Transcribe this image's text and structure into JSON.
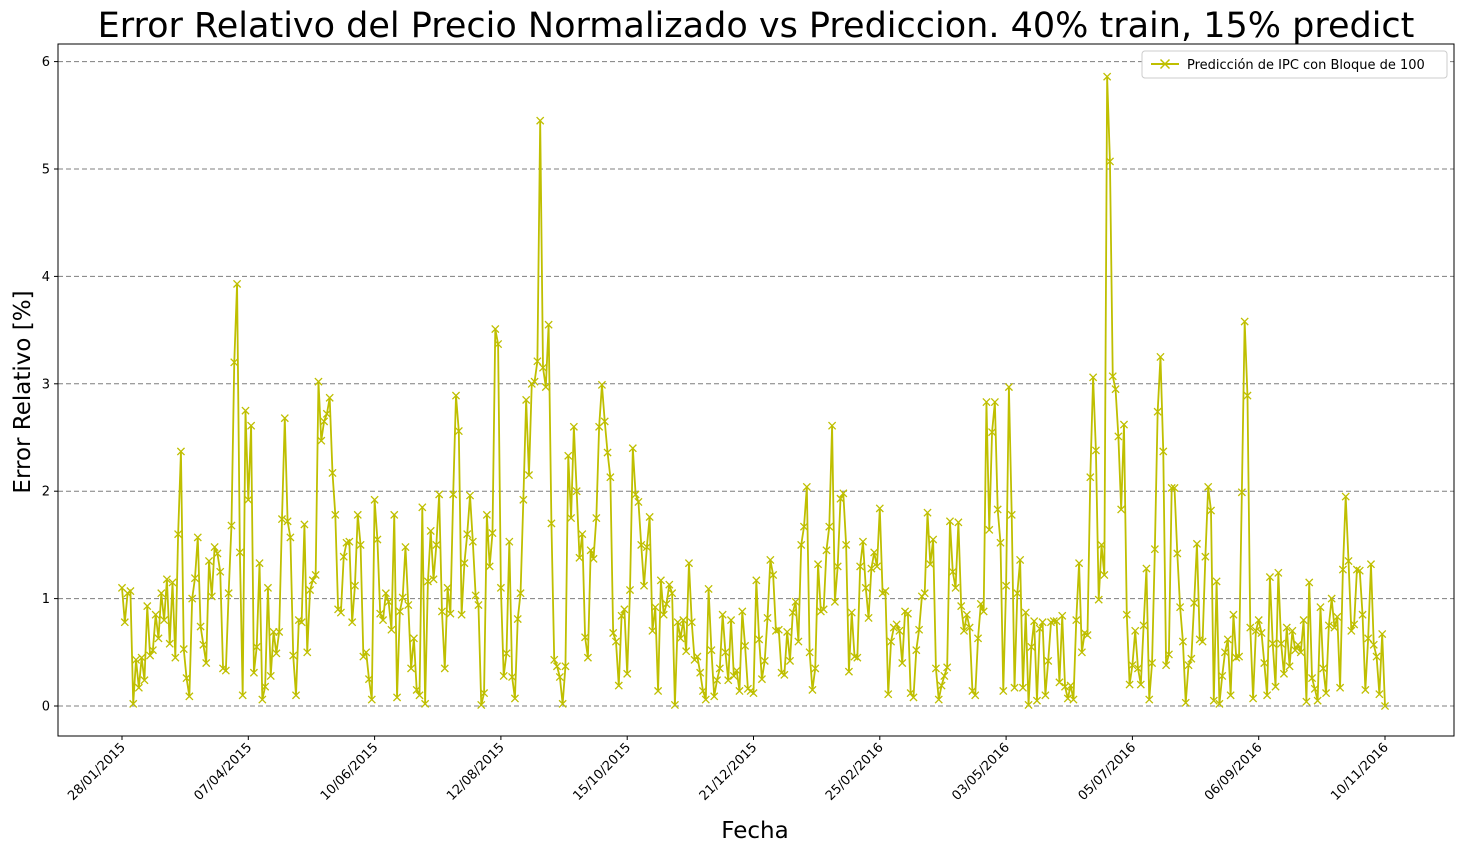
{
  "chart_data": {
    "type": "line",
    "title": "Error Relativo del Precio Normalizado vs Prediccion. 40% train, 15% predict",
    "xlabel": "Fecha",
    "ylabel": "Error Relativo [%]",
    "x_ticks": [
      "28/01/2015",
      "07/04/2015",
      "10/06/2015",
      "12/08/2015",
      "15/10/2015",
      "21/12/2015",
      "25/02/2016",
      "03/05/2016",
      "05/07/2016",
      "06/09/2016",
      "10/11/2016"
    ],
    "y_ticks": [
      "0",
      "1",
      "2",
      "3",
      "4",
      "5",
      "6"
    ],
    "ylim": [
      -0.3,
      6.17
    ],
    "grid": "horizontal dashed",
    "legend_position": "top-right",
    "color": "#bfbf00",
    "marker": "x",
    "series": [
      {
        "name": "Predicción de IPC con Bloque de 100",
        "values": [
          1.1,
          0.78,
          1.05,
          1.07,
          0.02,
          0.43,
          0.17,
          0.45,
          0.24,
          0.93,
          0.47,
          0.52,
          0.85,
          0.63,
          1.05,
          0.8,
          1.18,
          0.58,
          1.15,
          0.45,
          1.6,
          2.37,
          0.53,
          0.26,
          0.09,
          1.0,
          1.19,
          1.57,
          0.74,
          0.57,
          0.4,
          1.35,
          1.02,
          1.48,
          1.42,
          1.25,
          0.35,
          0.33,
          1.05,
          1.68,
          3.2,
          3.93,
          1.43,
          0.1,
          2.75,
          1.92,
          2.61,
          0.31,
          0.55,
          1.33,
          0.06,
          0.18,
          1.1,
          0.28,
          0.69,
          0.49,
          0.69,
          1.74,
          2.68,
          1.72,
          1.57,
          0.47,
          0.1,
          0.8,
          0.78,
          1.69,
          0.5,
          1.08,
          1.17,
          1.22,
          3.02,
          2.47,
          2.65,
          2.72,
          2.87,
          2.17,
          1.78,
          0.9,
          0.87,
          1.39,
          1.52,
          1.53,
          0.78,
          1.12,
          1.78,
          1.5,
          0.46,
          0.5,
          0.25,
          0.06,
          1.92,
          1.55,
          0.86,
          0.8,
          1.05,
          0.97,
          0.71,
          1.78,
          0.08,
          0.88,
          1.01,
          1.48,
          0.94,
          0.35,
          0.63,
          0.15,
          0.1,
          1.85,
          0.02,
          1.16,
          1.63,
          1.18,
          1.5,
          1.97,
          0.88,
          0.35,
          1.1,
          0.86,
          1.97,
          2.89,
          2.56,
          0.85,
          1.33,
          1.6,
          1.96,
          1.53,
          1.03,
          0.94,
          0.01,
          0.12,
          1.78,
          1.3,
          1.61,
          3.51,
          3.37,
          1.1,
          0.28,
          0.49,
          1.53,
          0.27,
          0.07,
          0.81,
          1.05,
          1.92,
          2.85,
          2.15,
          3.0,
          3.02,
          3.21,
          5.45,
          3.15,
          2.97,
          3.55,
          1.7,
          0.43,
          0.37,
          0.27,
          0.02,
          0.37,
          2.33,
          1.75,
          2.6,
          2.0,
          1.38,
          1.6,
          0.64,
          0.45,
          1.45,
          1.37,
          1.75,
          2.6,
          2.99,
          2.65,
          2.36,
          2.13,
          0.68,
          0.6,
          0.19,
          0.84,
          0.9,
          0.3,
          1.08,
          2.4,
          1.97,
          1.9,
          1.5,
          1.12,
          1.48,
          1.76,
          0.7,
          0.92,
          0.14,
          1.17,
          0.85,
          0.95,
          1.13,
          1.05,
          0.01,
          0.78,
          0.63,
          0.8,
          0.51,
          1.33,
          0.78,
          0.43,
          0.46,
          0.31,
          0.14,
          0.06,
          1.09,
          0.52,
          0.09,
          0.24,
          0.35,
          0.85,
          0.5,
          0.24,
          0.8,
          0.28,
          0.33,
          0.14,
          0.88,
          0.56,
          0.16,
          0.14,
          0.12,
          1.17,
          0.62,
          0.25,
          0.42,
          0.82,
          1.36,
          1.22,
          0.7,
          0.71,
          0.31,
          0.29,
          0.69,
          0.42,
          0.87,
          0.97,
          0.6,
          1.5,
          1.67,
          2.04,
          0.5,
          0.15,
          0.35,
          1.32,
          0.88,
          0.9,
          1.45,
          1.67,
          2.61,
          0.97,
          1.3,
          1.93,
          1.98,
          1.5,
          0.32,
          0.87,
          0.46,
          0.45,
          1.3,
          1.53,
          1.1,
          0.82,
          1.28,
          1.43,
          1.3,
          1.84,
          1.05,
          1.07,
          0.11,
          0.6,
          0.73,
          0.76,
          0.7,
          0.4,
          0.88,
          0.86,
          0.12,
          0.08,
          0.52,
          0.71,
          1.02,
          1.05,
          1.8,
          1.32,
          1.55,
          0.35,
          0.06,
          0.19,
          0.28,
          0.36,
          1.72,
          1.25,
          1.1,
          1.71,
          0.93,
          0.7,
          0.85,
          0.73,
          0.14,
          0.1,
          0.63,
          0.95,
          0.88,
          2.83,
          1.64,
          2.55,
          2.83,
          1.83,
          1.52,
          0.14,
          1.12,
          2.97,
          1.78,
          0.17,
          1.05,
          1.36,
          0.17,
          0.87,
          0.01,
          0.55,
          0.79,
          0.05,
          0.72,
          0.78,
          0.1,
          0.42,
          0.78,
          0.79,
          0.79,
          0.22,
          0.84,
          0.18,
          0.07,
          0.19,
          0.06,
          0.8,
          1.33,
          0.5,
          0.68,
          0.66,
          2.13,
          3.06,
          2.38,
          0.99,
          1.5,
          1.22,
          5.86,
          5.07,
          3.07,
          2.95,
          2.51,
          1.83,
          2.62,
          0.85,
          0.2,
          0.38,
          0.7,
          0.35,
          0.2,
          0.75,
          1.28,
          0.06,
          0.4,
          1.46,
          2.74,
          3.25,
          2.37,
          0.38,
          0.48,
          2.03,
          2.03,
          1.42,
          0.92,
          0.6,
          0.03,
          0.38,
          0.44,
          0.96,
          1.51,
          0.62,
          0.6,
          1.39,
          2.04,
          1.82,
          0.05,
          1.16,
          0.02,
          0.28,
          0.5,
          0.62,
          0.1,
          0.85,
          0.45,
          0.46,
          1.99,
          3.58,
          2.89,
          0.73,
          0.07,
          0.7,
          0.8,
          0.68,
          0.4,
          0.1,
          1.2,
          0.58,
          0.18,
          1.24,
          0.58,
          0.3,
          0.73,
          0.37,
          0.7,
          0.52,
          0.57,
          0.5,
          0.8,
          0.04,
          1.15,
          0.26,
          0.16,
          0.05,
          0.92,
          0.35,
          0.12,
          0.75,
          1.0,
          0.73,
          0.83,
          0.17,
          1.27,
          1.95,
          1.35,
          0.7,
          0.76,
          1.27,
          1.26,
          0.85,
          0.15,
          0.63,
          1.32,
          0.57,
          0.46,
          0.11,
          0.67,
          0.0
        ]
      }
    ]
  }
}
